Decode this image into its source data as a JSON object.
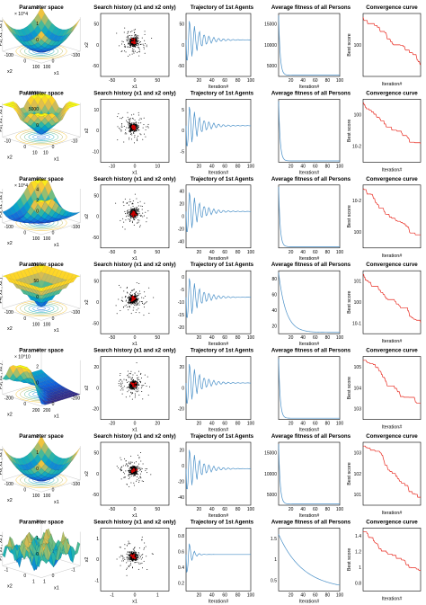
{
  "colors": {
    "line": "#4a90c8",
    "curve": "#e8281e",
    "scatter": "#000000",
    "best": "#cc0000",
    "axis": "#000000"
  },
  "column_titles": {
    "param": "Parameter space",
    "search": "Search history (x1 and x2 only)",
    "traj": "Trajectory of 1st Agents",
    "avg": "Average fitness of all Persons",
    "conv": "Convergence curve"
  },
  "column_titles_alt": {
    "search": "Search history (x1 and x2 only)"
  },
  "labels": {
    "x1": "x1",
    "x2": "x2",
    "iteration": "Iteration#",
    "best_score": "Best score"
  },
  "chart_data": [
    {
      "type": "surface",
      "row": 1,
      "title": "Parameter space",
      "zlabel": "F1( x1 , x2 )",
      "zscale_label": "× 10^4",
      "zticks": [
        "0",
        "1",
        "2"
      ],
      "xticks": [
        "100",
        "0",
        "-100"
      ],
      "yticks": [
        "-100",
        "0",
        "100"
      ],
      "xlabel": "x1",
      "ylabel": "x2"
    },
    {
      "type": "scatter",
      "row": 1,
      "title": "Search history (x1 and x2 only)",
      "xticks": [
        "-50",
        "0",
        "50"
      ],
      "yticks": [
        "50",
        "0",
        "-50"
      ],
      "xlabel": "x1",
      "ylabel": "x2"
    },
    {
      "type": "line",
      "row": 1,
      "title": "Trajectory of 1st Agents",
      "x": [
        0,
        100
      ],
      "xticks": [
        "20",
        "40",
        "60",
        "80",
        "100"
      ],
      "yticks": [
        "50",
        "0",
        "-50"
      ],
      "xlabel": "Iteration#"
    },
    {
      "type": "line",
      "row": 1,
      "title": "Average fitness of all Persons",
      "xticks": [
        "20",
        "40",
        "60",
        "80",
        "100"
      ],
      "yticks": [
        "15000",
        "10000",
        "5000"
      ],
      "xlabel": "Iteration#"
    },
    {
      "type": "line",
      "row": 1,
      "title": "Convergence curve",
      "yscale": "log",
      "yticks": [
        "10^0"
      ],
      "xlabel": "Iteration#",
      "ylabel": "Best score"
    },
    {
      "type": "surface",
      "row": 2,
      "title": "Parameter space",
      "zlabel": "F2( x1 , x2 )",
      "zticks": [
        "0",
        "5000",
        "10000"
      ],
      "xticks": [
        "10",
        "0",
        "-10"
      ],
      "yticks": [
        "-10",
        "0",
        "10"
      ],
      "xlabel": "x1",
      "ylabel": "x2"
    },
    {
      "type": "scatter",
      "row": 2,
      "title": "Search history (x1 and x2 only)",
      "xticks": [
        "-10",
        "0",
        "10"
      ],
      "yticks": [
        "10",
        "0",
        "-10"
      ],
      "xlabel": "x1",
      "ylabel": "x2"
    },
    {
      "type": "line",
      "row": 2,
      "title": "Trajectory of 1st Agents",
      "xticks": [
        "20",
        "40",
        "60",
        "80",
        "100"
      ],
      "yticks": [
        "5",
        "0",
        "-5"
      ],
      "xlabel": "Iteration#"
    },
    {
      "type": "line",
      "row": 2,
      "title": "Average fitness of all Persons",
      "xticks": [
        "20",
        "40",
        "60",
        "80",
        "100"
      ],
      "yticks": [],
      "xlabel": "Iteration#"
    },
    {
      "type": "line",
      "row": 2,
      "title": "Convergence curve",
      "yscale": "log",
      "yticks": [
        "10^0",
        "10^-2"
      ],
      "xlabel": "Iteration#",
      "ylabel": "Best score"
    },
    {
      "type": "surface",
      "row": 3,
      "title": "Parameter space",
      "zlabel": "F3( x1 , x2 )",
      "zscale_label": "× 10^4",
      "zticks": [
        "0",
        "2",
        "4",
        "6"
      ],
      "xticks": [
        "100",
        "0",
        "-100"
      ],
      "yticks": [
        "-100",
        "0",
        "100"
      ],
      "xlabel": "x1",
      "ylabel": "x2"
    },
    {
      "type": "scatter",
      "row": 3,
      "title": "Search history (x1 and x2 only)",
      "xticks": [
        "-50",
        "0",
        "50"
      ],
      "yticks": [
        "50",
        "0",
        "-50"
      ],
      "xlabel": "x1",
      "ylabel": "x2"
    },
    {
      "type": "line",
      "row": 3,
      "title": "Trajectory of 1st Agents",
      "xticks": [
        "20",
        "40",
        "60",
        "80",
        "100"
      ],
      "yticks": [
        "40",
        "20",
        "0",
        "-20",
        "-40"
      ],
      "xlabel": "Iteration#"
    },
    {
      "type": "line",
      "row": 3,
      "title": "Average fitness of all Persons",
      "xticks": [
        "20",
        "40",
        "60",
        "80",
        "100"
      ],
      "yticks": [],
      "xlabel": "Iteration#"
    },
    {
      "type": "line",
      "row": 3,
      "title": "Convergence curve",
      "yscale": "log",
      "yticks": [
        "10^-2",
        "10^0"
      ],
      "xlabel": "Iteration#",
      "ylabel": "Best score"
    },
    {
      "type": "surface",
      "row": 4,
      "title": "Parameter space",
      "zlabel": "F4( x1 , x2 )",
      "zticks": [
        "0",
        "50",
        "100"
      ],
      "xticks": [
        "100",
        "0",
        "-100"
      ],
      "yticks": [
        "-100",
        "0",
        "100"
      ],
      "xlabel": "x1",
      "ylabel": "x2"
    },
    {
      "type": "scatter",
      "row": 4,
      "title": "Search history (x1 and x2 only)",
      "xticks": [
        "-50",
        "0",
        "50"
      ],
      "yticks": [
        "50",
        "0",
        "-50"
      ],
      "xlabel": "x1",
      "ylabel": "x2"
    },
    {
      "type": "line",
      "row": 4,
      "title": "Trajectory of 1st Agents",
      "xticks": [
        "20",
        "40",
        "60",
        "80",
        "100"
      ],
      "yticks": [
        "0",
        "-5",
        "-10",
        "-15",
        "-20"
      ],
      "xlabel": "Iteration#"
    },
    {
      "type": "line",
      "row": 4,
      "title": "Average fitness of all Persons",
      "xticks": [
        "20",
        "40",
        "60",
        "80",
        "100"
      ],
      "yticks": [
        "80",
        "60",
        "40",
        "20"
      ],
      "xlabel": "Iteration#"
    },
    {
      "type": "line",
      "row": 4,
      "title": "Convergence curve",
      "yscale": "log",
      "yticks": [
        "10^1",
        "10^0",
        "10^-1"
      ],
      "xlabel": "Iteration#",
      "ylabel": "Best score"
    },
    {
      "type": "surface",
      "row": 5,
      "title": "Parameter space",
      "zlabel": "F5( x1 , x2 )",
      "zscale_label": "× 10^10",
      "zticks": [
        "0",
        "2",
        "4"
      ],
      "xticks": [
        "200",
        "0",
        "-200"
      ],
      "yticks": [
        "-200",
        "0",
        "200"
      ],
      "xlabel": "x1",
      "ylabel": "x2"
    },
    {
      "type": "scatter",
      "row": 5,
      "title": "Search history (x1 and x2 only)",
      "xticks": [
        "-20",
        "0",
        "20"
      ],
      "yticks": [
        "20",
        "0",
        "-20"
      ],
      "xlabel": "x1",
      "ylabel": "x2"
    },
    {
      "type": "line",
      "row": 5,
      "title": "Trajectory of 1st Agents",
      "xticks": [
        "20",
        "40",
        "60",
        "80",
        "100"
      ],
      "yticks": [
        "20",
        "0",
        "-20"
      ],
      "xlabel": "Iteration#"
    },
    {
      "type": "line",
      "row": 5,
      "title": "Average fitness of all Persons",
      "xticks": [
        "20",
        "40",
        "60",
        "80",
        "100"
      ],
      "yticks": [],
      "xlabel": "Iteration#"
    },
    {
      "type": "line",
      "row": 5,
      "title": "Convergence curve",
      "yscale": "log",
      "yticks": [
        "10^5",
        "10^4",
        "10^3"
      ],
      "xlabel": "Iteration#",
      "ylabel": "Best score"
    },
    {
      "type": "surface",
      "row": 6,
      "title": "Parameter space",
      "zlabel": "F6( x1 , x2 )",
      "zticks": [
        "0",
        "1",
        "2"
      ],
      "xticks": [
        "100",
        "0",
        "-100"
      ],
      "yticks": [
        "-100",
        "0",
        "100"
      ],
      "xlabel": "x1",
      "ylabel": "x2"
    },
    {
      "type": "scatter",
      "row": 6,
      "title": "Search history (x1 and x2 only)",
      "xticks": [
        "-50",
        "0",
        "50"
      ],
      "yticks": [
        "50",
        "0",
        "-50"
      ],
      "xlabel": "x1",
      "ylabel": "x2"
    },
    {
      "type": "line",
      "row": 6,
      "title": "Trajectory of 1st Agents",
      "xticks": [
        "20",
        "40",
        "60",
        "80",
        "100"
      ],
      "yticks": [
        "20",
        "0",
        "-20",
        "-40"
      ],
      "xlabel": "Iteration#"
    },
    {
      "type": "line",
      "row": 6,
      "title": "Average fitness of all Persons",
      "xticks": [
        "20",
        "40",
        "60",
        "80",
        "100"
      ],
      "yticks": [
        "15000",
        "10000",
        "5000"
      ],
      "xlabel": "Iteration#"
    },
    {
      "type": "line",
      "row": 6,
      "title": "Convergence curve",
      "yscale": "log",
      "yticks": [
        "10^3",
        "10^2",
        "10^1"
      ],
      "xlabel": "Iteration#",
      "ylabel": "Best score"
    },
    {
      "type": "surface",
      "row": 7,
      "title": "Parameter space",
      "zlabel": "F7( x1 , x2 )",
      "zticks": [
        "0",
        "1",
        "2"
      ],
      "xticks": [
        "1",
        "0",
        "-1"
      ],
      "yticks": [
        "-1",
        "0",
        "1"
      ],
      "xlabel": "x1",
      "ylabel": "x2"
    },
    {
      "type": "scatter",
      "row": 7,
      "title": "Search history (x1 and x2 only)",
      "xticks": [
        "-1",
        "0",
        "1"
      ],
      "yticks": [
        "1",
        "0",
        "-1"
      ],
      "xlabel": "x1",
      "ylabel": "x2"
    },
    {
      "type": "line",
      "row": 7,
      "title": "Trajectory of 1st Agents",
      "xticks": [
        "20",
        "40",
        "60",
        "80",
        "100"
      ],
      "yticks": [
        "0.8",
        "0.6",
        "0.4",
        "0.2"
      ],
      "xlabel": "Iteration#"
    },
    {
      "type": "line",
      "row": 7,
      "title": "Average fitness of all Persons",
      "xticks": [
        "20",
        "40",
        "60",
        "80",
        "100"
      ],
      "yticks": [
        "1.5",
        "1",
        "0.5"
      ],
      "xlabel": "Iteration#"
    },
    {
      "type": "line",
      "row": 7,
      "title": "Convergence curve",
      "yticks": [
        "1.4",
        "1.2",
        "1",
        "0.8"
      ],
      "xlabel": "Iteration#",
      "ylabel": "Best score"
    }
  ]
}
